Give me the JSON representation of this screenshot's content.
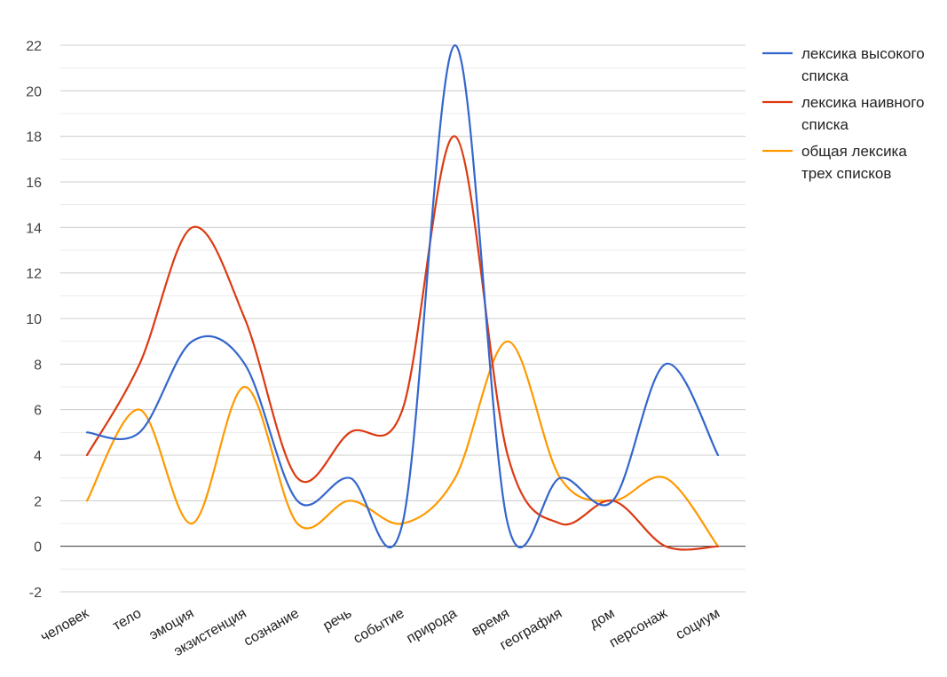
{
  "chart_data": {
    "type": "line",
    "smooth": true,
    "categories": [
      "человек",
      "тело",
      "эмоция",
      "экзистенция",
      "сознание",
      "речь",
      "событие",
      "природа",
      "время",
      "география",
      "дом",
      "персонаж",
      "социум"
    ],
    "series": [
      {
        "name": "лексика высокого списка",
        "name_lines": [
          "лексика высокого",
          "списка"
        ],
        "color": "#3366cc",
        "values": [
          5,
          5,
          9,
          8,
          2,
          3,
          1,
          22,
          1,
          3,
          2,
          8,
          4
        ]
      },
      {
        "name": "лексика наивного списка",
        "name_lines": [
          "лексика наивного",
          "списка"
        ],
        "color": "#dc3912",
        "values": [
          4,
          8,
          14,
          10,
          3,
          5,
          6,
          18,
          4,
          1,
          2,
          0,
          0
        ]
      },
      {
        "name": "общая лексика трех списков",
        "name_lines": [
          "общая лексика",
          "трех списков"
        ],
        "color": "#ff9900",
        "values": [
          2,
          6,
          1,
          7,
          1,
          2,
          1,
          3,
          9,
          3,
          2,
          3,
          0
        ]
      }
    ],
    "yticks": [
      -2,
      0,
      2,
      4,
      6,
      8,
      10,
      12,
      14,
      16,
      18,
      20,
      22
    ],
    "ylim": [
      -2,
      22
    ],
    "grid": true,
    "minor_grid": true,
    "legend_position": "right",
    "title": "",
    "xlabel": "",
    "ylabel": ""
  }
}
